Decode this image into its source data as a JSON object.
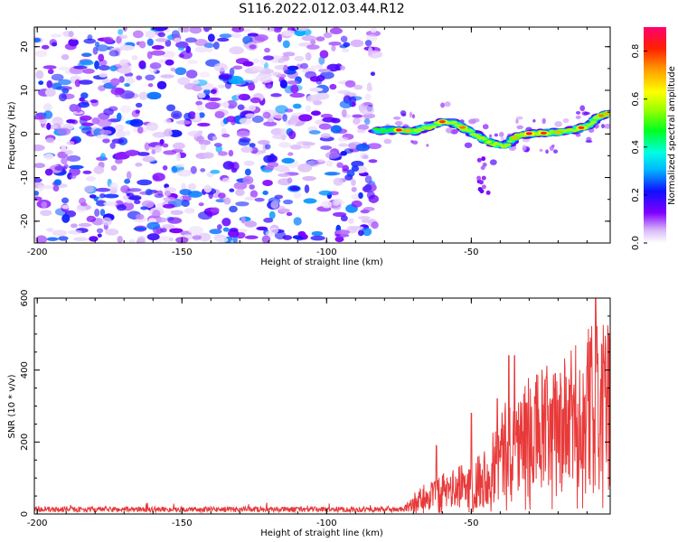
{
  "chart_data": [
    {
      "type": "heatmap",
      "title": "S116.2022.012.03.44.R12",
      "xlabel": "Height of straight line (km)",
      "ylabel": "Frequency (Hz)",
      "xlim": [
        -201,
        -2
      ],
      "ylim": [
        -25,
        24.5
      ],
      "xticks": [
        -200,
        -150,
        -100,
        -50
      ],
      "yticks": [
        20,
        10,
        0,
        -10,
        -20
      ],
      "colorbar": {
        "label": "Normalized spectral amplitude",
        "range": [
          0,
          0.9
        ],
        "ticks": [
          0.0,
          0.2,
          0.4,
          0.6,
          0.8
        ]
      },
      "regions": [
        {
          "name": "noise",
          "x": [
            -201,
            -83
          ],
          "y": [
            -25,
            24.5
          ],
          "amplitude": [
            0.02,
            0.3
          ]
        },
        {
          "name": "signal-ridge",
          "amplitude": [
            0.1,
            0.9
          ],
          "ridge": [
            [
              -83,
              0.8
            ],
            [
              -75,
              0.9
            ],
            [
              -70,
              0.6
            ],
            [
              -65,
              1.5
            ],
            [
              -60,
              2.8
            ],
            [
              -57,
              2.7
            ],
            [
              -53,
              1.5
            ],
            [
              -48,
              -0.3
            ],
            [
              -45,
              -1.6
            ],
            [
              -40,
              -2.8
            ],
            [
              -37,
              -2.3
            ],
            [
              -34,
              -0.2
            ],
            [
              -30,
              0.1
            ],
            [
              -25,
              0.2
            ],
            [
              -20,
              0.4
            ],
            [
              -15,
              0.9
            ],
            [
              -10,
              1.8
            ],
            [
              -6,
              4.0
            ],
            [
              -2,
              4.8
            ]
          ]
        }
      ]
    },
    {
      "type": "line",
      "xlabel": "Height of straight line (km)",
      "ylabel": "SNR (10 * v/v)",
      "xlim": [
        -201,
        -2
      ],
      "ylim": [
        0,
        600
      ],
      "xticks": [
        -200,
        -150,
        -100,
        -50
      ],
      "yticks": [
        0,
        200,
        400,
        600
      ],
      "series": [
        {
          "name": "SNR",
          "color": "#e83a3a",
          "envelope": {
            "x": [
              -201,
              -73,
              -70,
              -65,
              -60,
              -55,
              -50,
              -45,
              -40,
              -35,
              -30,
              -25,
              -20,
              -15,
              -10,
              -5,
              -2
            ],
            "y": [
              15,
              15,
              35,
              60,
              70,
              80,
              100,
              120,
              180,
              220,
              240,
              260,
              260,
              290,
              330,
              340,
              330
            ]
          },
          "peaks": [
            [
              -62,
              190
            ],
            [
              -50,
              280
            ],
            [
              -41,
              320
            ],
            [
              -37,
              440
            ],
            [
              -35,
              440
            ],
            [
              -21,
              390
            ],
            [
              -10,
              410
            ],
            [
              -7,
              610
            ],
            [
              -4,
              420
            ]
          ]
        }
      ]
    }
  ]
}
